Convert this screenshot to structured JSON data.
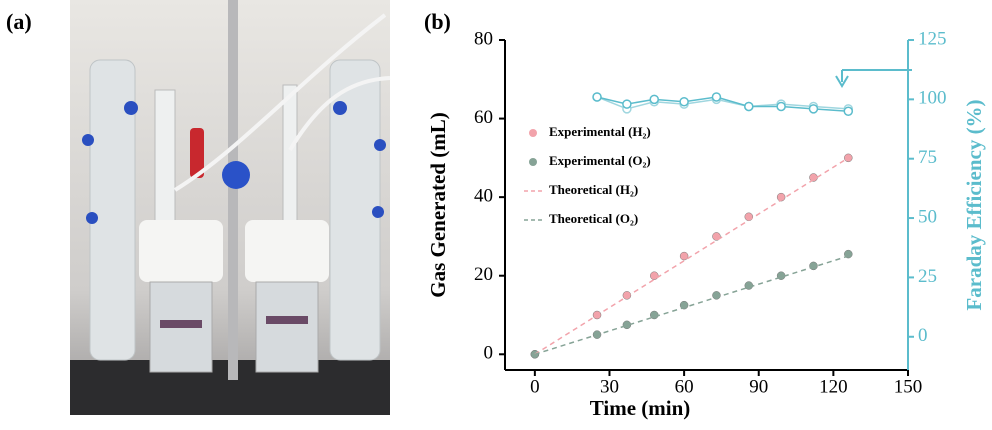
{
  "panel_labels": [
    "(a)",
    "(b)"
  ],
  "chart_data": {
    "type": "scatter",
    "xlabel": "Time (min)",
    "ylabel": "Gas Generated (mL)",
    "y2label": "Faraday Efficiency (%)",
    "xlim": [
      -12,
      150
    ],
    "xticks": [
      0,
      30,
      60,
      90,
      120,
      150
    ],
    "ylim": [
      -4,
      80
    ],
    "yticks": [
      0,
      20,
      40,
      60,
      80
    ],
    "y2lim": [
      -14,
      125
    ],
    "y2ticks": [
      0,
      25,
      50,
      75,
      100,
      125
    ],
    "y2color": "#5bbccc",
    "legend": "center left",
    "series": [
      {
        "name": "Experimental (H₂)",
        "style": "markers",
        "color": "#f2a3ab",
        "x": [
          0,
          25,
          37,
          48,
          60,
          73,
          86,
          99,
          112,
          126
        ],
        "values": [
          0,
          10,
          15,
          20,
          25,
          30,
          35,
          40,
          45,
          50
        ]
      },
      {
        "name": "Experimental (O₂)",
        "style": "markers",
        "color": "#86a396",
        "x": [
          0,
          25,
          37,
          48,
          60,
          73,
          86,
          99,
          112,
          126
        ],
        "values": [
          0,
          5,
          7.5,
          10,
          12.5,
          15,
          17.5,
          20,
          22.5,
          25.5
        ]
      },
      {
        "name": "Theoretical (H₂)",
        "style": "dashed",
        "color": "#f2a3ab",
        "x": [
          0,
          126
        ],
        "values": [
          0,
          50
        ]
      },
      {
        "name": "Theoretical (O₂)",
        "style": "dashed",
        "color": "#86a396",
        "x": [
          0,
          126
        ],
        "values": [
          0,
          25
        ]
      },
      {
        "style": "open-line",
        "color": "#9fd6df",
        "axis": "y2",
        "x": [
          25,
          37,
          48,
          60,
          73,
          86,
          99,
          112,
          126
        ],
        "values": [
          101,
          96,
          99,
          98,
          100,
          97,
          98,
          97,
          96
        ]
      },
      {
        "style": "open-line",
        "color": "#5bbccc",
        "axis": "y2",
        "x": [
          25,
          37,
          48,
          60,
          73,
          86,
          99,
          112,
          126
        ],
        "values": [
          101,
          98,
          100,
          99,
          101,
          97,
          97,
          96,
          95
        ]
      }
    ]
  }
}
